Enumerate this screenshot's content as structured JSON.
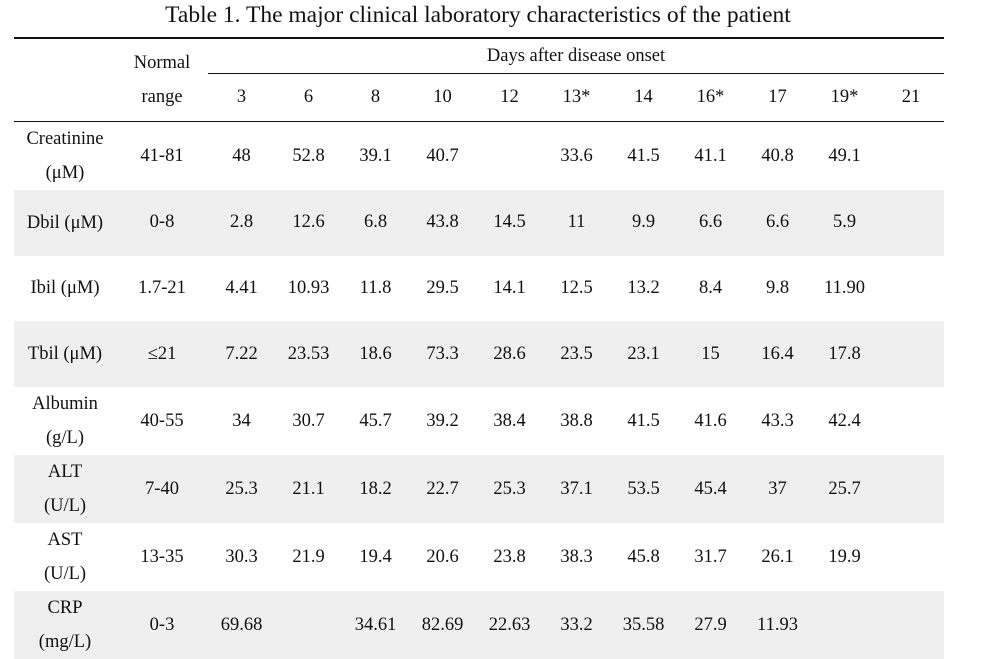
{
  "caption": "Table 1. The major clinical laboratory characteristics of the patient",
  "header": {
    "normal_range_line1": "Normal",
    "normal_range_line2": "range",
    "days_group": "Days after disease onset",
    "days": [
      "3",
      "6",
      "8",
      "10",
      "12",
      "13*",
      "14",
      "16*",
      "17",
      "19*",
      "21"
    ]
  },
  "rows": [
    {
      "name_line1": "Creatinine",
      "name_line2": "(μM)",
      "normal": "41-81",
      "values": [
        "48",
        "52.8",
        "39.1",
        "40.7",
        "",
        "33.6",
        "41.5",
        "41.1",
        "40.8",
        "49.1",
        ""
      ],
      "shaded": false
    },
    {
      "name_line1": "Dbil (μM)",
      "name_line2": "",
      "normal": "0-8",
      "values": [
        "2.8",
        "12.6",
        "6.8",
        "43.8",
        "14.5",
        "11",
        "9.9",
        "6.6",
        "6.6",
        "5.9",
        ""
      ],
      "shaded": true
    },
    {
      "name_line1": "Ibil (μM)",
      "name_line2": "",
      "normal": "1.7-21",
      "values": [
        "4.41",
        "10.93",
        "11.8",
        "29.5",
        "14.1",
        "12.5",
        "13.2",
        "8.4",
        "9.8",
        "11.90",
        ""
      ],
      "shaded": false
    },
    {
      "name_line1": "Tbil (μM)",
      "name_line2": "",
      "normal": "≤21",
      "values": [
        "7.22",
        "23.53",
        "18.6",
        "73.3",
        "28.6",
        "23.5",
        "23.1",
        "15",
        "16.4",
        "17.8",
        ""
      ],
      "shaded": true
    },
    {
      "name_line1": "Albumin",
      "name_line2": "(g/L)",
      "normal": "40-55",
      "values": [
        "34",
        "30.7",
        "45.7",
        "39.2",
        "38.4",
        "38.8",
        "41.5",
        "41.6",
        "43.3",
        "42.4",
        ""
      ],
      "shaded": false
    },
    {
      "name_line1": "ALT",
      "name_line2": "(U/L)",
      "normal": "7-40",
      "values": [
        "25.3",
        "21.1",
        "18.2",
        "22.7",
        "25.3",
        "37.1",
        "53.5",
        "45.4",
        "37",
        "25.7",
        ""
      ],
      "shaded": true
    },
    {
      "name_line1": "AST",
      "name_line2": "(U/L)",
      "normal": "13-35",
      "values": [
        "30.3",
        "21.9",
        "19.4",
        "20.6",
        "23.8",
        "38.3",
        "45.8",
        "31.7",
        "26.1",
        "19.9",
        ""
      ],
      "shaded": false
    },
    {
      "name_line1": "CRP",
      "name_line2": "(mg/L)",
      "normal": "0-3",
      "values": [
        "69.68",
        "",
        "34.61",
        "82.69",
        "22.63",
        "33.2",
        "35.58",
        "27.9",
        "11.93",
        "",
        ""
      ],
      "shaded": true
    }
  ]
}
